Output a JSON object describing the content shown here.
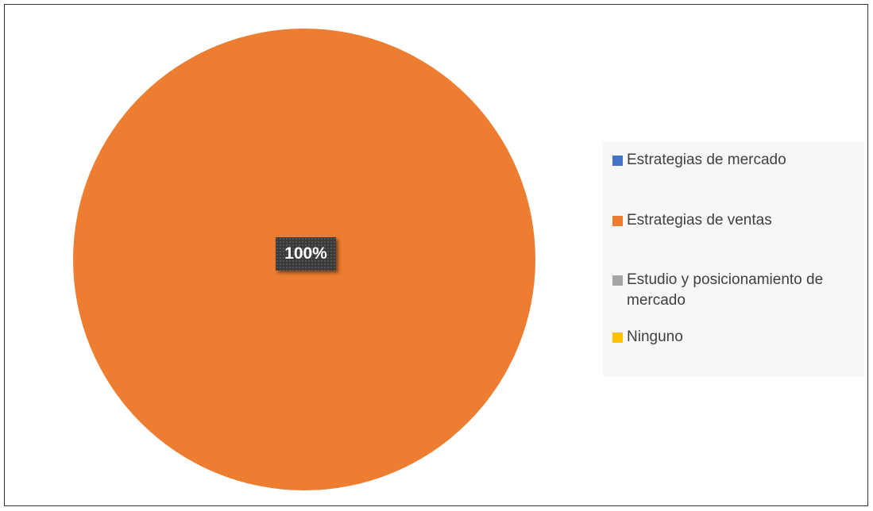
{
  "chart_data": {
    "type": "pie",
    "title": "",
    "categories": [
      "Estrategias de mercado",
      "Estrategias de ventas",
      "Estudio y posicionamiento de mercado",
      "Ninguno"
    ],
    "values": [
      0,
      100,
      0,
      0
    ],
    "unit": "%",
    "colors": [
      "#4472C4",
      "#ED7D31",
      "#A5A5A5",
      "#FFC000"
    ],
    "data_labels": [
      "100%"
    ],
    "legend_position": "right"
  },
  "legend": [
    {
      "label": "Estrategias de mercado",
      "color": "#4472C4"
    },
    {
      "label": "Estrategias de ventas",
      "color": "#ED7D31"
    },
    {
      "label": "Estudio y posicionamiento de mercado",
      "color": "#A5A5A5"
    },
    {
      "label": "Ninguno",
      "color": "#FFC000"
    }
  ]
}
